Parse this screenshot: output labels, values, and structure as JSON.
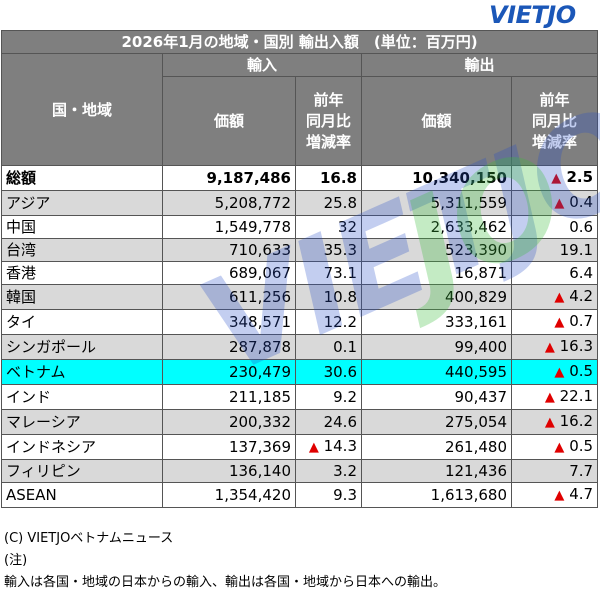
{
  "logo": "VIETJO",
  "table": {
    "title": "2026年1月の地域・国別 輸出入額　(単位：百万円)",
    "region_header": "国・地域",
    "import_header": "輸入",
    "export_header": "輸出",
    "value_header": "価額",
    "yoy_header_lines": [
      "前年",
      "同月比",
      "増減率"
    ],
    "rows": [
      {
        "name": "総額",
        "import": "9,187,486",
        "import_yoy": "16.8",
        "import_neg": false,
        "export": "10,340,150",
        "export_yoy": "2.5",
        "export_neg": true,
        "style": "total",
        "indent": false
      },
      {
        "name": "アジア",
        "import": "5,208,772",
        "import_yoy": "25.8",
        "import_neg": false,
        "export": "5,311,559",
        "export_yoy": "0.4",
        "export_neg": true,
        "style": "gray",
        "indent": false
      },
      {
        "name": "中国",
        "import": "1,549,778",
        "import_yoy": "32",
        "import_neg": false,
        "export": "2,633,462",
        "export_yoy": "0.6",
        "export_neg": false,
        "style": "white",
        "indent": true
      },
      {
        "name": "台湾",
        "import": "710,633",
        "import_yoy": "35.3",
        "import_neg": false,
        "export": "523,390",
        "export_yoy": "19.1",
        "export_neg": false,
        "style": "gray",
        "indent": true
      },
      {
        "name": "香港",
        "import": "689,067",
        "import_yoy": "73.1",
        "import_neg": false,
        "export": "16,871",
        "export_yoy": "6.4",
        "export_neg": false,
        "style": "white",
        "indent": true
      },
      {
        "name": "韓国",
        "import": "611,256",
        "import_yoy": "10.8",
        "import_neg": false,
        "export": "400,829",
        "export_yoy": "4.2",
        "export_neg": true,
        "style": "gray",
        "indent": true
      },
      {
        "name": "タイ",
        "import": "348,571",
        "import_yoy": "12.2",
        "import_neg": false,
        "export": "333,161",
        "export_yoy": "0.7",
        "export_neg": true,
        "style": "white",
        "indent": true
      },
      {
        "name": "シンガポール",
        "import": "287,878",
        "import_yoy": "0.1",
        "import_neg": false,
        "export": "99,400",
        "export_yoy": "16.3",
        "export_neg": true,
        "style": "gray",
        "indent": true
      },
      {
        "name": "ベトナム",
        "import": "230,479",
        "import_yoy": "30.6",
        "import_neg": false,
        "export": "440,595",
        "export_yoy": "0.5",
        "export_neg": true,
        "style": "hl",
        "indent": true
      },
      {
        "name": "インド",
        "import": "211,185",
        "import_yoy": "9.2",
        "import_neg": false,
        "export": "90,437",
        "export_yoy": "22.1",
        "export_neg": true,
        "style": "white",
        "indent": true
      },
      {
        "name": "マレーシア",
        "import": "200,332",
        "import_yoy": "24.6",
        "import_neg": false,
        "export": "275,054",
        "export_yoy": "16.2",
        "export_neg": true,
        "style": "gray",
        "indent": true
      },
      {
        "name": "インドネシア",
        "import": "137,369",
        "import_yoy": "14.3",
        "import_neg": true,
        "export": "261,480",
        "export_yoy": "0.5",
        "export_neg": true,
        "style": "white",
        "indent": true
      },
      {
        "name": "フィリピン",
        "import": "136,140",
        "import_yoy": "3.2",
        "import_neg": false,
        "export": "121,436",
        "export_yoy": "7.7",
        "export_neg": false,
        "style": "gray",
        "indent": true
      },
      {
        "name": "ASEAN",
        "import": "1,354,420",
        "import_yoy": "9.3",
        "import_neg": false,
        "export": "1,613,680",
        "export_yoy": "4.7",
        "export_neg": true,
        "style": "white",
        "indent": false
      }
    ]
  },
  "negative_marker": "▲",
  "footer": {
    "copyright": "(C) VIETJOベトナムニュース",
    "note_label": "(注)",
    "note_text": "輸入は各国・地域の日本からの輸入、輸出は各国・地域から日本への輸出。"
  }
}
